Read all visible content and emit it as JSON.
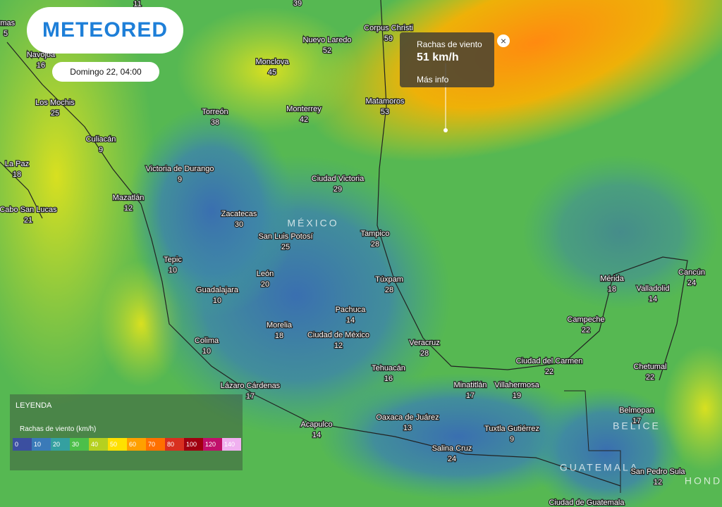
{
  "header": {
    "logo": "METEORED",
    "date": "Domingo 22, 04:00"
  },
  "tooltip": {
    "title": "Rachas de viento",
    "value": "51 km/h",
    "link": "Más info"
  },
  "legend": {
    "heading": "LEYENDA",
    "title": "Rachas de viento (km/h)",
    "ticks": [
      0,
      10,
      20,
      30,
      40,
      50,
      60,
      70,
      80,
      100,
      120,
      140
    ],
    "colors": [
      "#3b4fa0",
      "#3a7ab8",
      "#34a0a0",
      "#4cbf4a",
      "#b5d020",
      "#ffe000",
      "#ffa000",
      "#ff7000",
      "#d83020",
      "#a00010",
      "#c0106a",
      "#f0b0f0"
    ]
  },
  "countries": [
    "MÉXICO",
    "BELICE",
    "GUATEMALA",
    "HONDU"
  ],
  "cities": [
    {
      "name": "ymas",
      "value": 5
    },
    {
      "value": 11
    },
    {
      "value": 39
    },
    {
      "name": "Navojoa",
      "value": 16
    },
    {
      "name": "Los Mochis",
      "value": 25
    },
    {
      "name": "Culiacán",
      "value": 9
    },
    {
      "name": "La Paz",
      "value": 18
    },
    {
      "name": "Cabo San Lucas",
      "value": 21
    },
    {
      "name": "Mazatlán",
      "value": 12
    },
    {
      "name": "Victoria de Durango",
      "value": 9
    },
    {
      "name": "Torreón",
      "value": 38
    },
    {
      "name": "Monclova",
      "value": 45
    },
    {
      "name": "Nuevo Laredo",
      "value": 52
    },
    {
      "name": "Corpus Christi",
      "value": 59
    },
    {
      "name": "Monterrey",
      "value": 42
    },
    {
      "name": "Matamoros",
      "value": 53
    },
    {
      "name": "Ciudad Victoria",
      "value": 29
    },
    {
      "name": "Zacatecas",
      "value": 30
    },
    {
      "name": "San Luis Potosí",
      "value": 25
    },
    {
      "name": "Tampico",
      "value": 28
    },
    {
      "name": "Tepic",
      "value": 10
    },
    {
      "name": "León",
      "value": 20
    },
    {
      "name": "Túxpam",
      "value": 28
    },
    {
      "name": "Guadalajara",
      "value": 10
    },
    {
      "name": "Pachuca",
      "value": 14
    },
    {
      "name": "Morelia",
      "value": 18
    },
    {
      "name": "Ciudad de México",
      "value": 12
    },
    {
      "name": "Colima",
      "value": 10
    },
    {
      "name": "Veracruz",
      "value": 28
    },
    {
      "name": "Tehuacán",
      "value": 16
    },
    {
      "name": "Lázaro Cárdenas",
      "value": 17
    },
    {
      "name": "Minatitlán",
      "value": 17
    },
    {
      "name": "Villahermosa",
      "value": 19
    },
    {
      "name": "Ciudad del Carmen",
      "value": 22
    },
    {
      "name": "Campeche",
      "value": 22
    },
    {
      "name": "Mérida",
      "value": 18
    },
    {
      "name": "Valladolid",
      "value": 14
    },
    {
      "name": "Cancún",
      "value": 24
    },
    {
      "name": "Chetumal",
      "value": 22
    },
    {
      "name": "Belmopan",
      "value": 17
    },
    {
      "name": "Acapulco",
      "value": 14
    },
    {
      "name": "Oaxaca de Juárez",
      "value": 13
    },
    {
      "name": "Tuxtla Gutiérrez",
      "value": 9
    },
    {
      "name": "Salina Cruz",
      "value": 24
    },
    {
      "name": "San Pedro Sula",
      "value": 12
    },
    {
      "name": "Ciudad de Guatemala"
    }
  ]
}
